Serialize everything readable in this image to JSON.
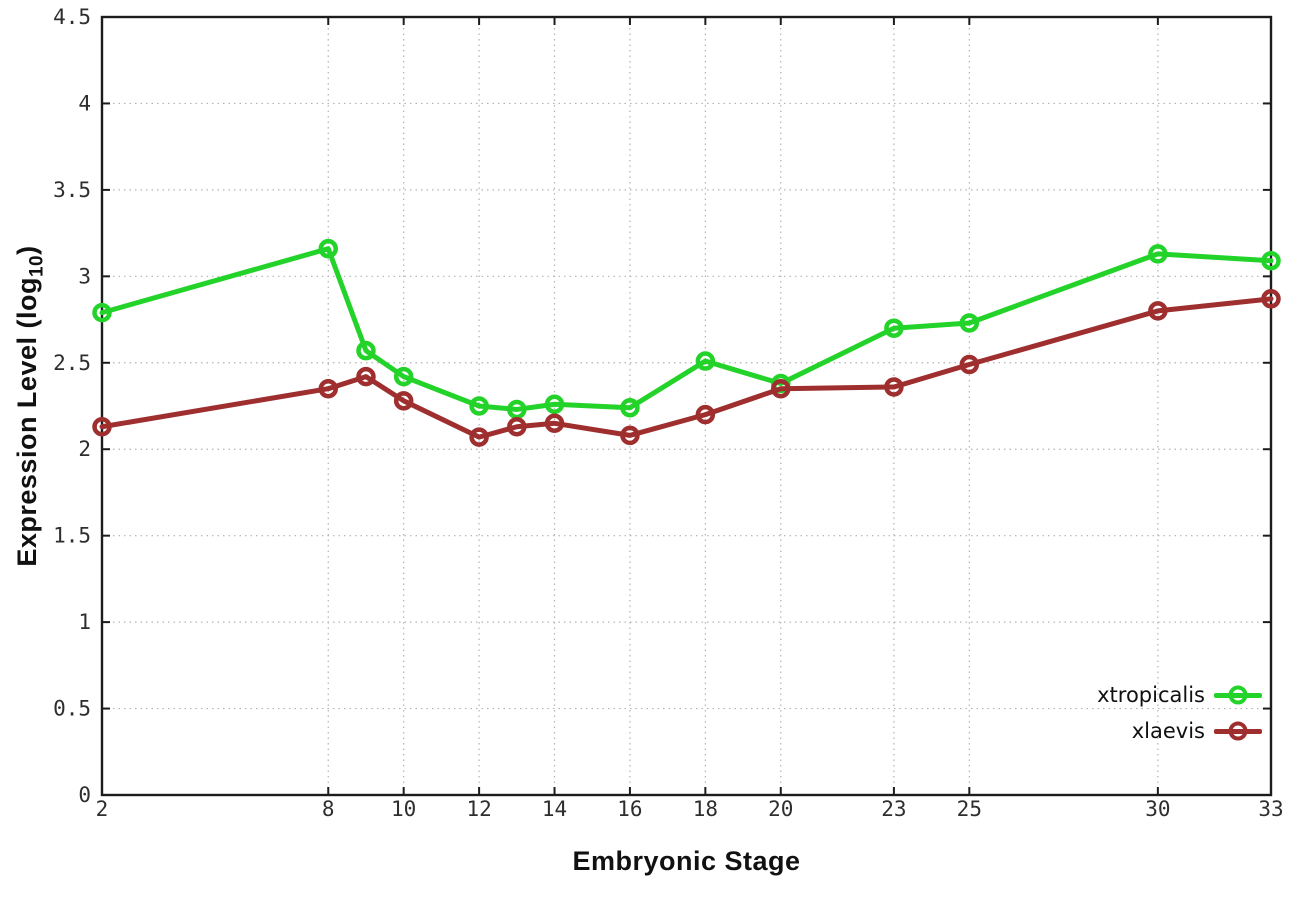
{
  "page": {
    "background": "#ffffff"
  },
  "chart_data": {
    "type": "line",
    "title": "",
    "xlabel": "Embryonic Stage",
    "ylabel": "Expression Level (log10)",
    "ylabel_parts": {
      "prefix": "Expression Level (log",
      "sub": "10",
      "suffix": ")"
    },
    "xlim": [
      2,
      33
    ],
    "ylim": [
      0,
      4.5
    ],
    "grid": true,
    "legend_position": "bottom-right inside",
    "x": [
      2,
      8,
      9,
      10,
      12,
      13,
      14,
      16,
      18,
      20,
      23,
      25,
      30,
      33
    ],
    "xticks": [
      2,
      8,
      10,
      12,
      14,
      16,
      18,
      20,
      23,
      25,
      30,
      33
    ],
    "xtick_labels": [
      "2",
      "8",
      "10",
      "12",
      "14",
      "16",
      "18",
      "20",
      "23",
      "25",
      "30",
      "33"
    ],
    "yticks": [
      0,
      0.5,
      1,
      1.5,
      2,
      2.5,
      3,
      3.5,
      4,
      4.5
    ],
    "ytick_labels": [
      "0",
      "0.5",
      "1",
      "1.5",
      "2",
      "2.5",
      "3",
      "3.5",
      "4",
      "4.5"
    ],
    "series": [
      {
        "name": "xtropicalis",
        "color": "#24d32a",
        "marker": "open-circle",
        "values": [
          2.79,
          3.16,
          2.57,
          2.42,
          2.25,
          2.23,
          2.26,
          2.24,
          2.51,
          2.38,
          2.7,
          2.73,
          3.13,
          3.09
        ]
      },
      {
        "name": "xlaevis",
        "color": "#9f2f2f",
        "marker": "open-circle",
        "values": [
          2.13,
          2.35,
          2.42,
          2.28,
          2.07,
          2.13,
          2.15,
          2.08,
          2.2,
          2.35,
          2.36,
          2.49,
          2.8,
          2.87
        ]
      }
    ],
    "style": {
      "border_color": "#1c1c1c",
      "grid_color": "#b3b3b3",
      "tick_label_color": "#2e2e2e",
      "line_width": 5,
      "marker_radius": 7.5,
      "marker_stroke": 4.5
    }
  }
}
